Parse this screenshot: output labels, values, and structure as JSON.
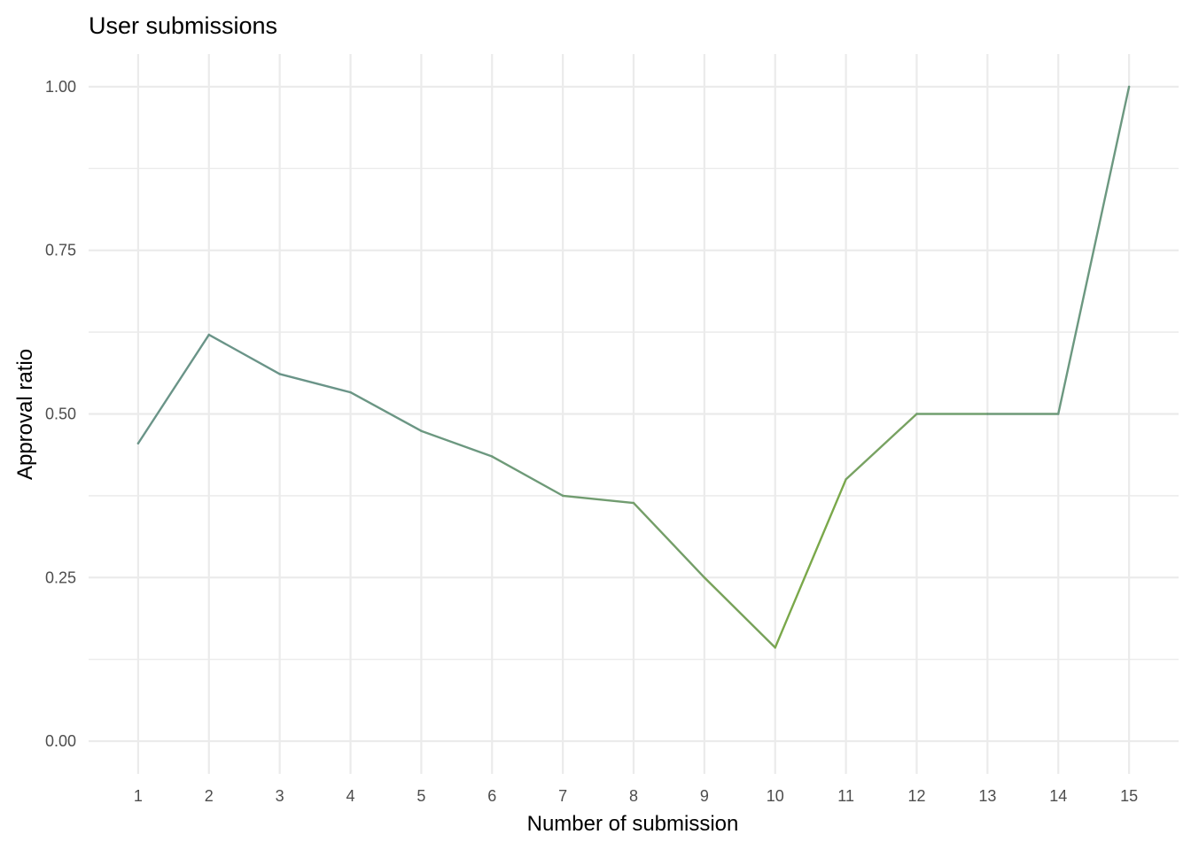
{
  "chart_data": {
    "type": "line",
    "title": "User submissions",
    "xlabel": "Number of submission",
    "ylabel": "Approval ratio",
    "x": [
      1,
      2,
      3,
      4,
      5,
      6,
      7,
      8,
      9,
      10,
      11,
      12,
      13,
      14,
      15
    ],
    "x_tick_labels": [
      "1",
      "2",
      "3",
      "4",
      "5",
      "6",
      "7",
      "8",
      "9",
      "10",
      "11",
      "12",
      "13",
      "14",
      "15"
    ],
    "y_ticks": [
      0,
      0.25,
      0.5,
      0.75,
      1
    ],
    "y_tick_labels": [
      "0.00",
      "0.25",
      "0.50",
      "0.75",
      "1.00"
    ],
    "series": [
      {
        "values": [
          0.455,
          0.621,
          0.561,
          0.533,
          0.474,
          0.435,
          0.375,
          0.364,
          0.25,
          0.143,
          0.4,
          0.5,
          0.5,
          0.5,
          1.0
        ],
        "color": "#6e9a78",
        "segment_colors": [
          "#6a9488",
          "#6a9488",
          "#6a9488",
          "#6b9684",
          "#6c9880",
          "#6e9a78",
          "#719c70",
          "#749e68",
          "#78a25a",
          "#7aa84a",
          "#78a262",
          "#72a070",
          "#6e9a78",
          "#6c9880"
        ]
      }
    ],
    "xlim": [
      0.3,
      15.7
    ],
    "ylim": [
      -0.05,
      1.05
    ],
    "grid": true,
    "legend": "none"
  }
}
